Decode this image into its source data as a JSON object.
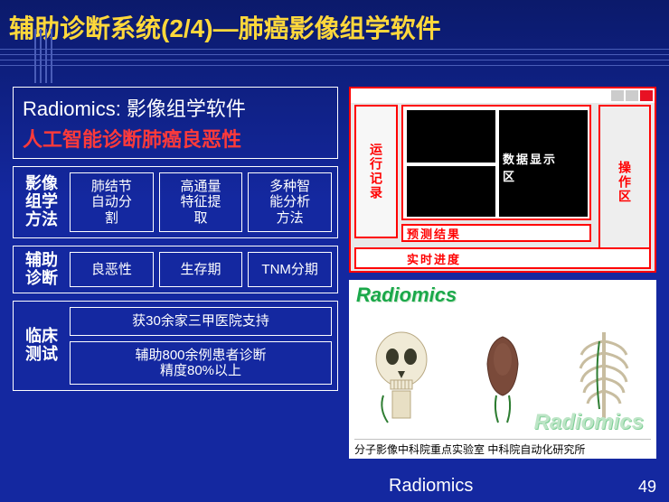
{
  "title": "辅助诊断系统(2/4)—肺癌影像组学软件",
  "intro": {
    "line1": "Radiomics: 影像组学软件",
    "line2": "人工智能诊断肺癌良恶性"
  },
  "method": {
    "label": "影像\n组学\n方法",
    "cells": [
      "肺结节\n自动分\n割",
      "高通量\n特征提\n取",
      "多种智\n能分析\n方法"
    ]
  },
  "assist": {
    "label": "辅助\n诊断",
    "cells": [
      "良恶性",
      "生存期",
      "TNM分期"
    ]
  },
  "clinical": {
    "label": "临床\n测试",
    "cells": [
      "获30余家三甲医院支持",
      "辅助800余例患者诊断\n精度80%以上"
    ]
  },
  "screenshot_labels": {
    "runlog": "运行记录",
    "data_area": "数据显示\n区",
    "ops_area": "操作区",
    "predict": "预测结果",
    "progress": "实时进度"
  },
  "radiomics_panel": {
    "title": "Radiomics",
    "title2": "Radiomics",
    "caption": "分子影像中科院重点实验室 中科院自动化研究所"
  },
  "footer": "Radiomics",
  "page": "49",
  "colors": {
    "title": "#ffd83b",
    "accent_red": "#ff3a3a",
    "border_red": "#ff0000",
    "green": "#1aa84a"
  }
}
